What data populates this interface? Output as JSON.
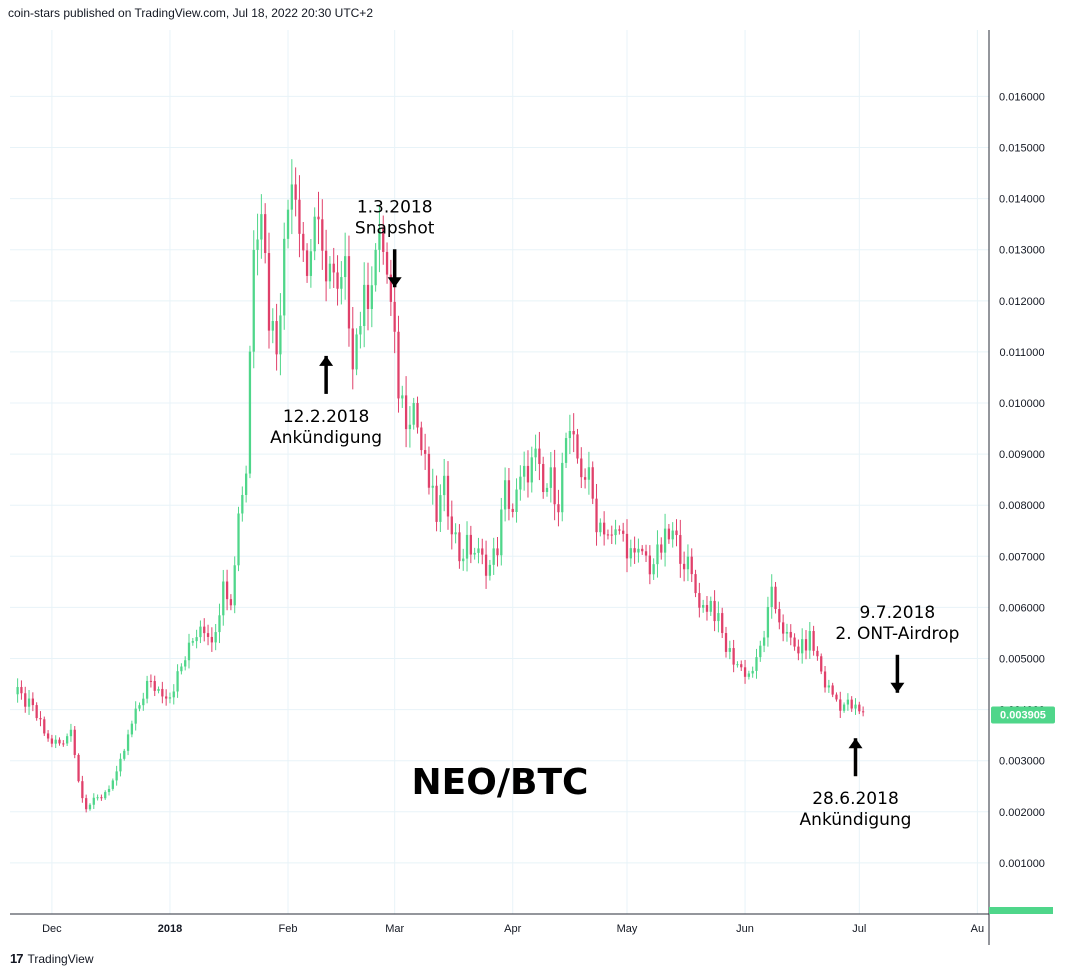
{
  "header": {
    "text": "coin-stars published on TradingView.com, Jul 18, 2022 20:30 UTC+2"
  },
  "footer": {
    "logo": "17",
    "brand": "TradingView"
  },
  "colors": {
    "up": "#26a69a",
    "up_body": "#4fd68a",
    "down": "#e0406a",
    "grid": "#e8f3f8",
    "axis": "#2a2e39",
    "price_tag": "#4fd68a"
  },
  "chart_data": {
    "type": "candlestick",
    "symbol_label": "NEO/BTC",
    "ylim": [
      0,
      0.0173
    ],
    "y_ticks": [
      "0.001000",
      "0.002000",
      "0.003000",
      "0.004000",
      "0.005000",
      "0.006000",
      "0.007000",
      "0.008000",
      "0.009000",
      "0.010000",
      "0.011000",
      "0.012000",
      "0.013000",
      "0.014000",
      "0.015000",
      "0.016000"
    ],
    "x_labels": [
      {
        "label": "Dec",
        "day": 19
      },
      {
        "label": "2018",
        "day": 50
      },
      {
        "label": "Feb",
        "day": 81
      },
      {
        "label": "Mar",
        "day": 109
      },
      {
        "label": "Apr",
        "day": 140
      },
      {
        "label": "May",
        "day": 170
      },
      {
        "label": "Jun",
        "day": 201
      },
      {
        "label": "Jul",
        "day": 231
      },
      {
        "label": "Au",
        "day": 262
      }
    ],
    "last_price": "0.003905",
    "last_price_value": 0.003905,
    "anchors": [
      [
        10,
        0.0043
      ],
      [
        14,
        0.004
      ],
      [
        18,
        0.0034
      ],
      [
        22,
        0.0033
      ],
      [
        24,
        0.0037
      ],
      [
        26,
        0.0026
      ],
      [
        28,
        0.0021
      ],
      [
        32,
        0.0023
      ],
      [
        36,
        0.0027
      ],
      [
        40,
        0.0037
      ],
      [
        44,
        0.0045
      ],
      [
        50,
        0.0043
      ],
      [
        54,
        0.005
      ],
      [
        58,
        0.0057
      ],
      [
        62,
        0.0054
      ],
      [
        64,
        0.0067
      ],
      [
        66,
        0.006
      ],
      [
        68,
        0.0079
      ],
      [
        70,
        0.0087
      ],
      [
        72,
        0.0133
      ],
      [
        74,
        0.014
      ],
      [
        76,
        0.0117
      ],
      [
        78,
        0.0112
      ],
      [
        80,
        0.013
      ],
      [
        82,
        0.0147
      ],
      [
        84,
        0.0137
      ],
      [
        86,
        0.0125
      ],
      [
        88,
        0.0137
      ],
      [
        90,
        0.0127
      ],
      [
        92,
        0.0127
      ],
      [
        94,
        0.012
      ],
      [
        96,
        0.0125
      ],
      [
        98,
        0.011
      ],
      [
        100,
        0.0117
      ],
      [
        102,
        0.0122
      ],
      [
        104,
        0.013
      ],
      [
        106,
        0.0131
      ],
      [
        108,
        0.0118
      ],
      [
        110,
        0.0103
      ],
      [
        112,
        0.0098
      ],
      [
        114,
        0.01
      ],
      [
        116,
        0.0091
      ],
      [
        118,
        0.0084
      ],
      [
        120,
        0.0078
      ],
      [
        122,
        0.0083
      ],
      [
        124,
        0.0077
      ],
      [
        126,
        0.007
      ],
      [
        128,
        0.0072
      ],
      [
        130,
        0.0071
      ],
      [
        132,
        0.0069
      ],
      [
        134,
        0.0068
      ],
      [
        136,
        0.0072
      ],
      [
        138,
        0.0083
      ],
      [
        140,
        0.0079
      ],
      [
        142,
        0.0084
      ],
      [
        144,
        0.0087
      ],
      [
        146,
        0.0089
      ],
      [
        148,
        0.0082
      ],
      [
        150,
        0.0085
      ],
      [
        152,
        0.0081
      ],
      [
        154,
        0.0093
      ],
      [
        156,
        0.0091
      ],
      [
        158,
        0.0087
      ],
      [
        160,
        0.0085
      ],
      [
        162,
        0.0077
      ],
      [
        164,
        0.0076
      ],
      [
        166,
        0.0073
      ],
      [
        168,
        0.0075
      ],
      [
        170,
        0.0072
      ],
      [
        172,
        0.0069
      ],
      [
        174,
        0.0071
      ],
      [
        176,
        0.0068
      ],
      [
        178,
        0.007
      ],
      [
        180,
        0.0073
      ],
      [
        182,
        0.0074
      ],
      [
        184,
        0.0071
      ],
      [
        186,
        0.0068
      ],
      [
        188,
        0.0063
      ],
      [
        190,
        0.006
      ],
      [
        192,
        0.0061
      ],
      [
        194,
        0.0057
      ],
      [
        196,
        0.0052
      ],
      [
        198,
        0.005
      ],
      [
        200,
        0.0048
      ],
      [
        202,
        0.0047
      ],
      [
        204,
        0.0049
      ],
      [
        206,
        0.0055
      ],
      [
        208,
        0.0062
      ],
      [
        210,
        0.0058
      ],
      [
        212,
        0.0054
      ],
      [
        214,
        0.0052
      ],
      [
        216,
        0.0052
      ],
      [
        218,
        0.0054
      ],
      [
        220,
        0.005
      ],
      [
        222,
        0.0045
      ],
      [
        224,
        0.0043
      ],
      [
        226,
        0.0041
      ],
      [
        228,
        0.0041
      ],
      [
        230,
        0.004
      ],
      [
        232,
        0.0039
      ]
    ],
    "annotations": [
      {
        "lines": [
          "1.3.2018",
          "Snapshot"
        ],
        "arrow": "down",
        "day": 109
      },
      {
        "lines": [
          "12.2.2018",
          "Ankündigung"
        ],
        "arrow": "up",
        "day": 91
      },
      {
        "lines": [
          "9.7.2018",
          "2. ONT-Airdrop"
        ],
        "arrow": "down",
        "day": 241
      },
      {
        "lines": [
          "28.6.2018",
          "Ankündigung"
        ],
        "arrow": "up",
        "day": 230
      }
    ]
  }
}
